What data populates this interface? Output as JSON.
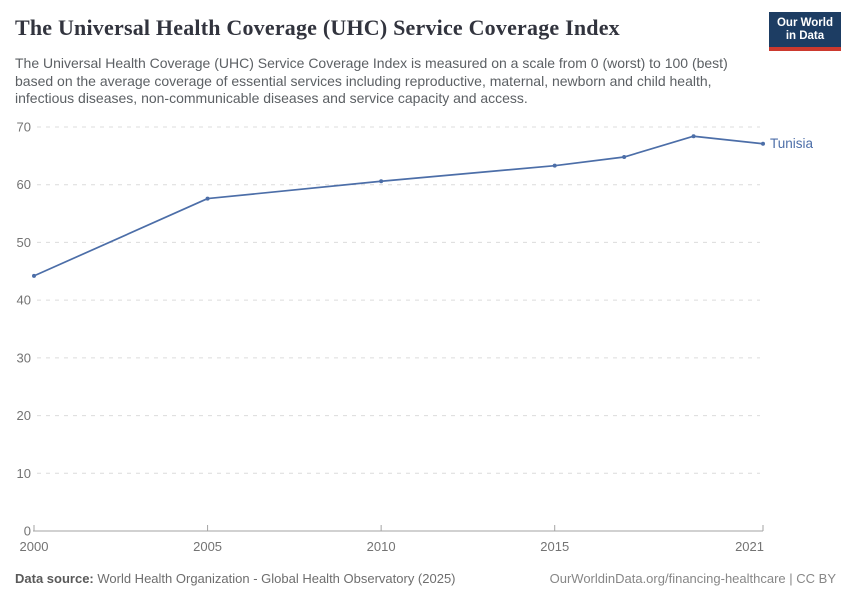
{
  "header": {
    "title": "The Universal Health Coverage (UHC) Service Coverage Index",
    "subtitle": "The Universal Health Coverage (UHC) Service Coverage Index is measured on a scale from 0 (worst) to 100 (best) based on the average coverage of essential services including reproductive, maternal, newborn and child health, infectious diseases, non-communicable diseases and service capacity and access.",
    "logo": {
      "line1": "Our World",
      "line2": "in Data",
      "bg_color": "#1d3d63",
      "accent_color": "#cc392e"
    }
  },
  "chart_data": {
    "type": "line",
    "title": "The Universal Health Coverage (UHC) Service Coverage Index",
    "xlabel": "",
    "ylabel": "",
    "xlim": [
      2000,
      2021
    ],
    "ylim": [
      0,
      70
    ],
    "xticks": [
      2000,
      2005,
      2010,
      2015,
      2021
    ],
    "yticks": [
      0,
      10,
      20,
      30,
      40,
      50,
      60,
      70
    ],
    "grid": "horizontal-dashed",
    "legend_position": "end-of-line-label",
    "series": [
      {
        "name": "Tunisia",
        "color": "#4c6ea8",
        "x": [
          2000,
          2005,
          2010,
          2015,
          2017,
          2019,
          2021
        ],
        "values": [
          44.2,
          57.6,
          60.6,
          63.3,
          64.8,
          68.4,
          67.1
        ]
      }
    ],
    "colors": {
      "gridline": "#dcdcdc",
      "axis_line": "#a3a3a3",
      "tick_label": "#737373"
    }
  },
  "footer": {
    "data_source_label": "Data source:",
    "data_source_value": " World Health Organization - Global Health Observatory (2025)",
    "attribution": "OurWorldinData.org/financing-healthcare | CC BY"
  }
}
